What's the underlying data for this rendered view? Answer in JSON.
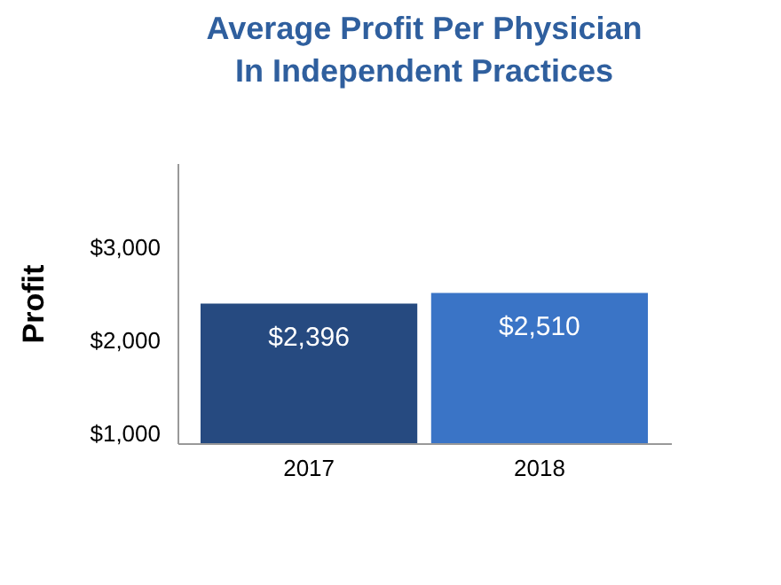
{
  "chart_data": {
    "type": "bar",
    "title": "Average Profit Per Physician\nIn Independent Practices",
    "ylabel": "Profit",
    "categories": [
      "2017",
      "2018"
    ],
    "values": [
      2396,
      2510
    ],
    "colors": [
      "#264a80",
      "#3a74c6"
    ],
    "value_labels": [
      "$2,396",
      "$2,510"
    ],
    "ylim": [
      900,
      3900
    ],
    "yticks": [
      {
        "value": 1000,
        "label": "$1,000"
      },
      {
        "value": 2000,
        "label": "$2,000"
      },
      {
        "value": 3000,
        "label": "$3,000"
      }
    ],
    "grid": false
  }
}
